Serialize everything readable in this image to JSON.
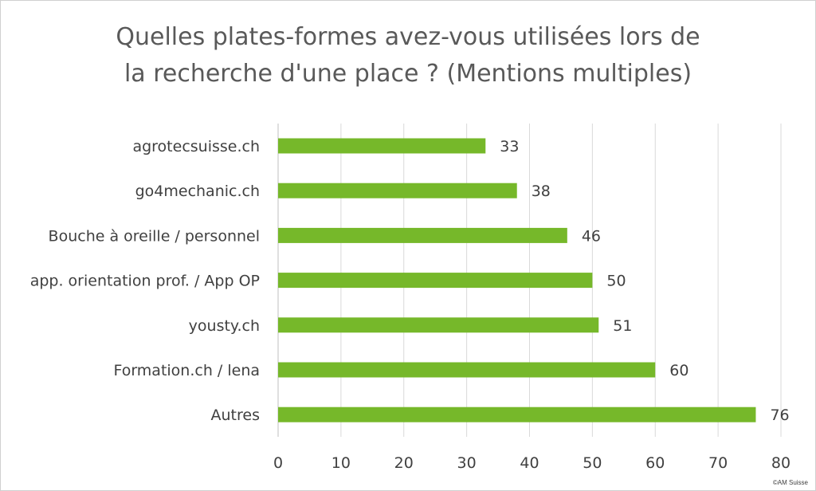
{
  "chart_data": {
    "type": "bar",
    "orientation": "horizontal",
    "title_lines": [
      "Quelles plates-formes avez-vous utilisées lors de",
      "la recherche d'une place ? (Mentions multiples)"
    ],
    "categories": [
      "agrotecsuisse.ch",
      "go4mechanic.ch",
      "Bouche à oreille / personnel",
      "app. orientation prof. / App OP",
      "yousty.ch",
      "Formation.ch / lena",
      "Autres"
    ],
    "values": [
      33,
      38,
      46,
      50,
      51,
      60,
      76
    ],
    "xlim": [
      0,
      80
    ],
    "x_ticks": [
      "0",
      "10",
      "20",
      "30",
      "40",
      "50",
      "60",
      "70",
      "80"
    ],
    "grid": "vertical",
    "bar_color": "#76b82a",
    "data_labels": true
  },
  "footer": {
    "copyright": "©AM Suisse"
  }
}
